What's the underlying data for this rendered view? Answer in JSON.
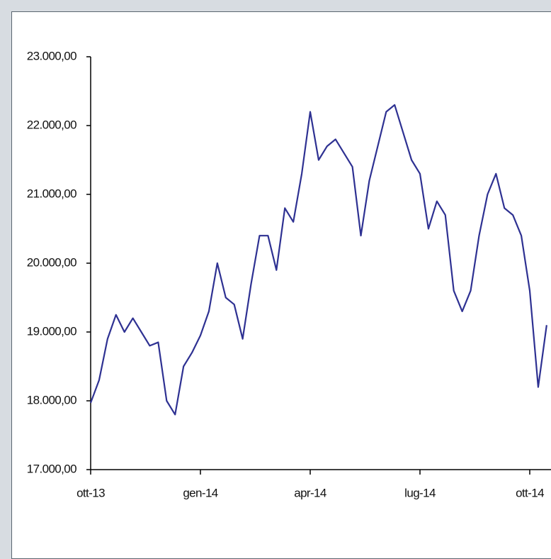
{
  "chart_data": {
    "type": "line",
    "categories": [
      "ott-13",
      null,
      null,
      null,
      null,
      null,
      null,
      null,
      null,
      null,
      null,
      null,
      null,
      "gen-14",
      null,
      null,
      null,
      null,
      null,
      null,
      null,
      null,
      null,
      null,
      null,
      null,
      "apr-14",
      null,
      null,
      null,
      null,
      null,
      null,
      null,
      null,
      null,
      null,
      null,
      null,
      "lug-14",
      null,
      null,
      null,
      null,
      null,
      null,
      null,
      null,
      null,
      null,
      null,
      null,
      "ott-14",
      null,
      null
    ],
    "series": [
      {
        "color": "#2e3192",
        "values": [
          17970,
          18300,
          18900,
          19250,
          19000,
          19200,
          19000,
          18800,
          18850,
          18000,
          17800,
          18500,
          18700,
          18950,
          19300,
          20000,
          19500,
          19400,
          18900,
          19700,
          20400,
          20400,
          19900,
          20800,
          20600,
          21300,
          22200,
          21500,
          21700,
          21800,
          21600,
          21400,
          20400,
          21200,
          21700,
          22200,
          22300,
          21900,
          21500,
          21300,
          20500,
          20900,
          20700,
          19600,
          19300,
          19600,
          20400,
          21000,
          21300,
          20800,
          20700,
          20400,
          19600,
          18200,
          19100
        ]
      }
    ],
    "ylim": [
      17000,
      23000
    ],
    "yticks": [
      {
        "value": 17000,
        "label": "17.000,00"
      },
      {
        "value": 18000,
        "label": "18.000,00"
      },
      {
        "value": 19000,
        "label": "19.000,00"
      },
      {
        "value": 20000,
        "label": "20.000,00"
      },
      {
        "value": 21000,
        "label": "21.000,00"
      },
      {
        "value": 22000,
        "label": "22.000,00"
      },
      {
        "value": 23000,
        "label": "23.000,00"
      }
    ]
  }
}
